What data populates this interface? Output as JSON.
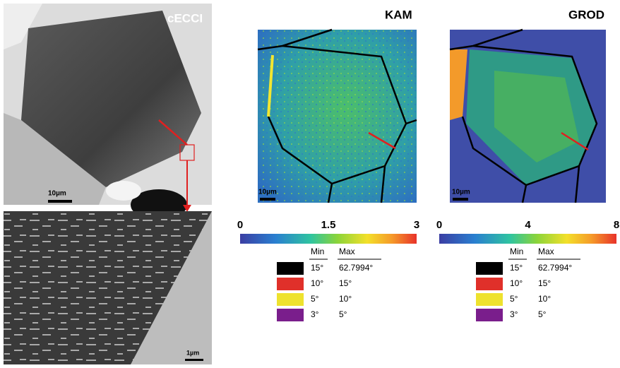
{
  "panels": {
    "cecci": {
      "label": "cECCI",
      "scale_bar": "10µm"
    },
    "zoom": {
      "scale_bar": "1µm"
    },
    "kam": {
      "label": "KAM",
      "scale_bar": "10µm",
      "colorbar_ticks": [
        "0",
        "1.5",
        "3"
      ],
      "legend": {
        "headers": [
          "Min",
          "Max"
        ],
        "rows": [
          [
            "15°",
            "62.7994°"
          ],
          [
            "10°",
            "15°"
          ],
          [
            "5°",
            "10°"
          ],
          [
            "3°",
            "5°"
          ]
        ]
      }
    },
    "grod": {
      "label": "GROD",
      "scale_bar": "10µm",
      "colorbar_ticks": [
        "0",
        "4",
        "8"
      ],
      "legend": {
        "headers": [
          "Min",
          "Max"
        ],
        "rows": [
          [
            "15°",
            "62.7994°"
          ],
          [
            "10°",
            "15°"
          ],
          [
            "5°",
            "10°"
          ],
          [
            "3°",
            "5°"
          ]
        ]
      }
    }
  }
}
